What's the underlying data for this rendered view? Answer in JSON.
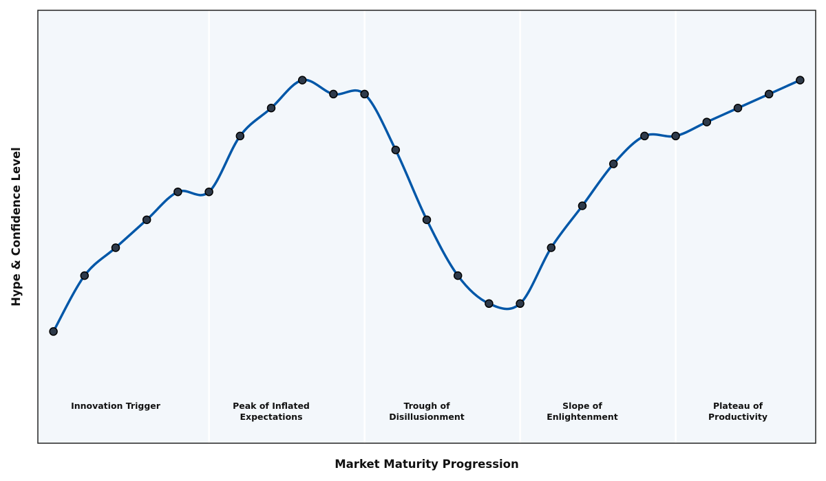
{
  "chart_data": {
    "type": "line",
    "title": "",
    "xlabel": "Market Maturity Progression",
    "ylabel": "Hype & Confidence Level",
    "xlim": [
      -0.5,
      24.5
    ],
    "ylim": [
      0,
      12.4
    ],
    "grid": false,
    "legend": "none",
    "line_color": "#0057A8",
    "marker_fill": "#2E3A4A",
    "marker_edge": "#000000",
    "plot_background": "#F3F7FB",
    "phase_divider_color": "#FFFFFF",
    "x": [
      0,
      1,
      2,
      3,
      4,
      5,
      6,
      7,
      8,
      9,
      10,
      11,
      12,
      13,
      14,
      15,
      16,
      17,
      18,
      19,
      20,
      21,
      22,
      23,
      24
    ],
    "series": [
      {
        "values": [
          3.2,
          4.8,
          5.6,
          6.4,
          7.2,
          7.2,
          8.8,
          9.6,
          10.4,
          10.0,
          10.0,
          8.4,
          6.4,
          4.8,
          4.0,
          4.0,
          5.6,
          6.8,
          8.0,
          8.8,
          8.8,
          9.2,
          9.6,
          10.0,
          10.4
        ]
      }
    ],
    "phase_dividers": [
      5,
      10,
      15,
      20
    ],
    "phases": [
      {
        "lines": [
          "Innovation Trigger"
        ],
        "x": 2
      },
      {
        "lines": [
          "Peak of Inflated",
          "Expectations"
        ],
        "x": 7
      },
      {
        "lines": [
          "Trough of",
          "Disillusionment"
        ],
        "x": 12
      },
      {
        "lines": [
          "Slope of",
          "Enlightenment"
        ],
        "x": 17
      },
      {
        "lines": [
          "Plateau of",
          "Productivity"
        ],
        "x": 22
      }
    ]
  }
}
